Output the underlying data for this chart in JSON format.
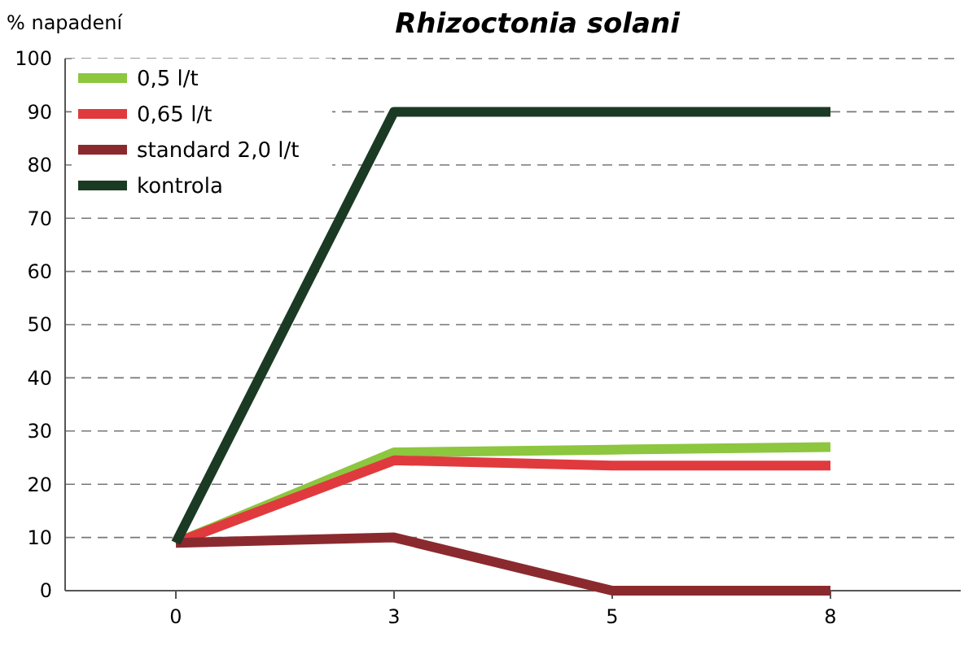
{
  "chart_data": {
    "type": "line",
    "title": "Rhizoctonia solani",
    "ylabel": "% napadení",
    "categories": [
      "0",
      "3",
      "5",
      "8"
    ],
    "ylim": [
      0,
      100
    ],
    "yticks": [
      0,
      10,
      20,
      30,
      40,
      50,
      60,
      70,
      80,
      90,
      100
    ],
    "grid": "y",
    "legend": "top left",
    "line_style": "solid",
    "marker": "none",
    "series": [
      {
        "name": "0,5 l/t",
        "color": "#8dc63f",
        "values": [
          9,
          26,
          26.5,
          27
        ]
      },
      {
        "name": "0,65 l/t",
        "color": "#e03a3e",
        "values": [
          9,
          24.5,
          23.5,
          23.5
        ]
      },
      {
        "name": "standard 2,0 l/t",
        "color": "#8b2a2e",
        "values": [
          9,
          10,
          0,
          0
        ]
      },
      {
        "name": "kontrola",
        "color": "#1b3a24",
        "values": [
          9,
          90,
          90,
          90
        ]
      }
    ]
  }
}
